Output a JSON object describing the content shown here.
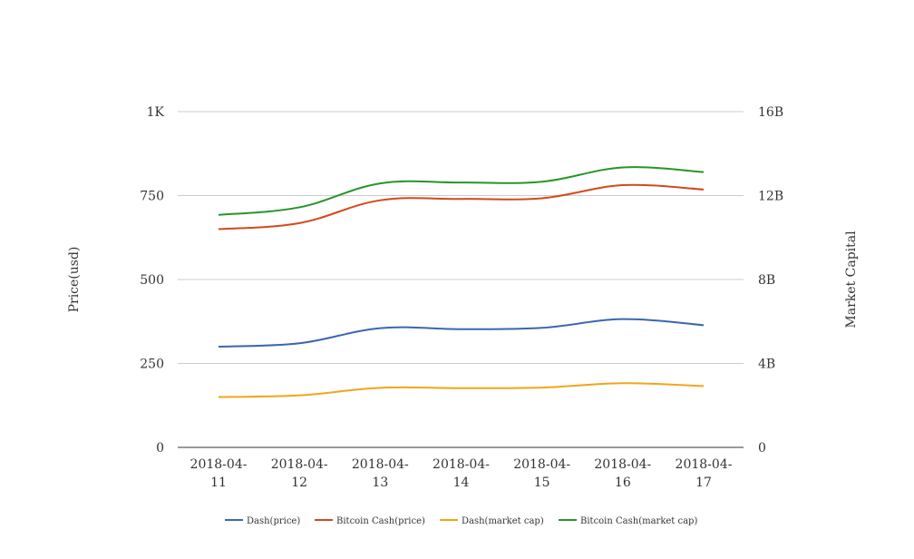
{
  "chart_data": {
    "type": "line",
    "title": "",
    "x": [
      "2018-04-11",
      "2018-04-12",
      "2018-04-13",
      "2018-04-14",
      "2018-04-15",
      "2018-04-16",
      "2018-04-17"
    ],
    "x_tick_lines": [
      [
        "2018-04-",
        "11"
      ],
      [
        "2018-04-",
        "12"
      ],
      [
        "2018-04-",
        "13"
      ],
      [
        "2018-04-",
        "14"
      ],
      [
        "2018-04-",
        "15"
      ],
      [
        "2018-04-",
        "16"
      ],
      [
        "2018-04-",
        "17"
      ]
    ],
    "y_left": {
      "label": "Price(usd)",
      "range": [
        0,
        1000
      ],
      "ticks": [
        0,
        250,
        500,
        750,
        1000
      ],
      "tick_labels": [
        "0",
        "250",
        "500",
        "750",
        "1K"
      ]
    },
    "y_right": {
      "label": "Market Capital",
      "range": [
        0,
        16000000000
      ],
      "ticks": [
        0,
        4000000000,
        8000000000,
        12000000000,
        16000000000
      ],
      "tick_labels": [
        "0",
        "4B",
        "8B",
        "12B",
        "16B"
      ]
    },
    "grid": true,
    "legend_position": "bottom",
    "series": [
      {
        "name": "Dash(price)",
        "axis": "left",
        "color": "#3b66b0",
        "values": [
          300,
          310,
          355,
          352,
          356,
          382,
          364
        ]
      },
      {
        "name": "Bitcoin Cash(price)",
        "axis": "left",
        "color": "#d24a1c",
        "values": [
          650,
          668,
          736,
          740,
          742,
          781,
          768
        ]
      },
      {
        "name": "Dash(market cap)",
        "axis": "right",
        "color": "#f2a51a",
        "values": [
          2400000000,
          2480000000,
          2840000000,
          2820000000,
          2850000000,
          3060000000,
          2920000000
        ]
      },
      {
        "name": "Bitcoin Cash(market cap)",
        "axis": "right",
        "color": "#27952a",
        "values": [
          11080000000,
          11440000000,
          12580000000,
          12620000000,
          12660000000,
          13340000000,
          13120000000
        ]
      }
    ]
  }
}
